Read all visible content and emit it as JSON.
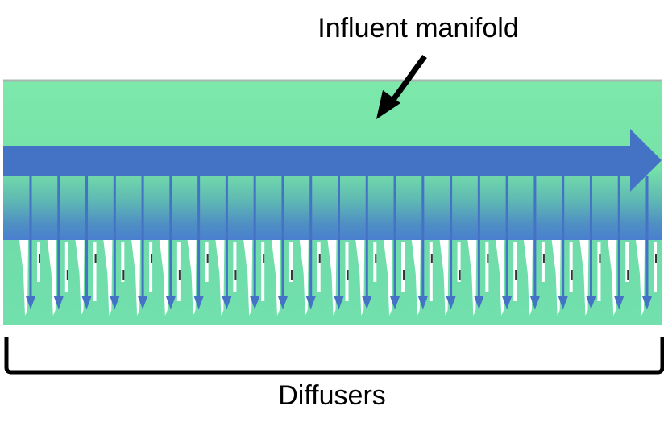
{
  "labels": {
    "manifold": "Influent manifold",
    "diffusers": "Diffusers"
  },
  "colors": {
    "manifold_fill": "#7de8aa",
    "manifold_top_edge": "#a8b8b0",
    "flow_arrow": "#4472c4",
    "diffuser_fill": "#6fdca9",
    "diffuser_void": "#ffffff",
    "pointer_arrow": "#000000",
    "bracket": "#000000"
  },
  "diffusers": {
    "count": 23
  }
}
